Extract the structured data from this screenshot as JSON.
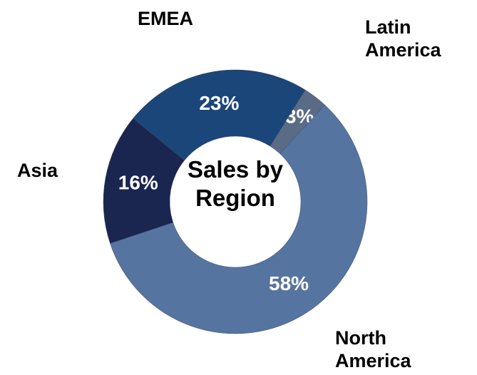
{
  "chart_data": {
    "type": "donut",
    "title": "Sales by Region",
    "categories": [
      "Latin America",
      "North America",
      "Asia",
      "EMEA"
    ],
    "values": [
      3,
      58,
      16,
      23
    ],
    "value_labels": [
      "3%",
      "58%",
      "16%",
      "23%"
    ],
    "colors": [
      "#5a6b85",
      "#5674a0",
      "#1a2550",
      "#1b4679"
    ]
  }
}
